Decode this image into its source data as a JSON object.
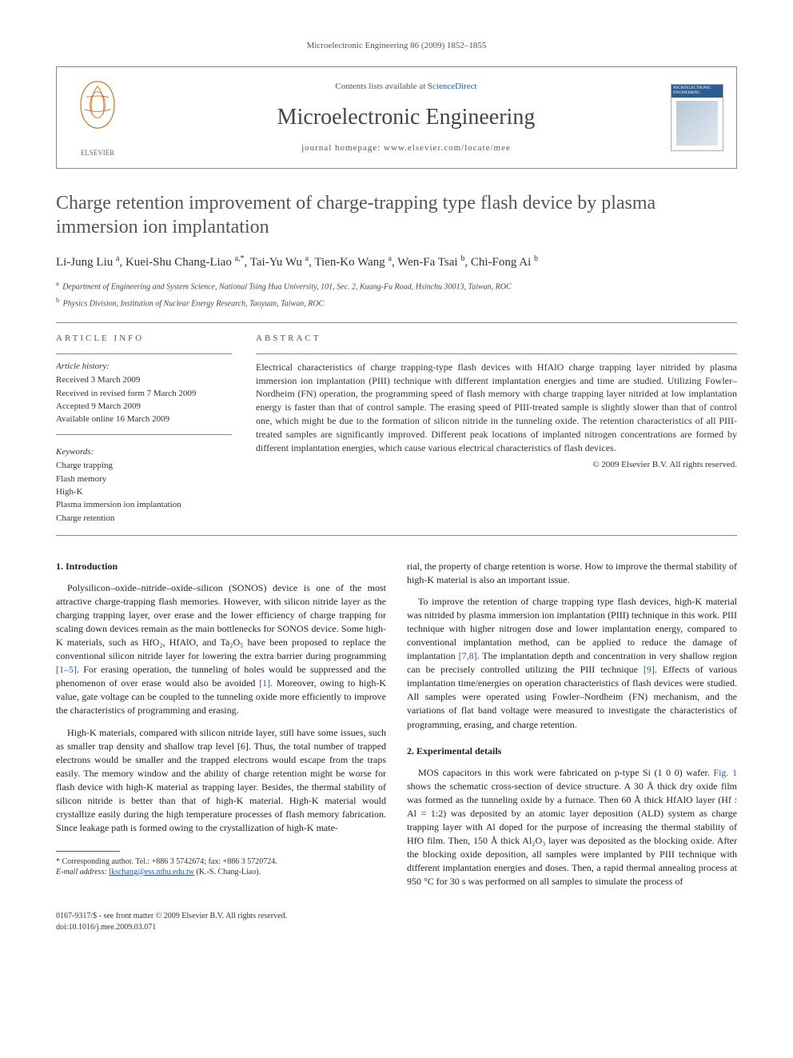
{
  "journal_ref": "Microelectronic Engineering 86 (2009) 1852–1855",
  "header": {
    "publisher": "ELSEVIER",
    "contents_prefix": "Contents lists available at ",
    "contents_link": "ScienceDirect",
    "journal_name": "Microelectronic Engineering",
    "homepage_prefix": "journal homepage: ",
    "homepage_url": "www.elsevier.com/locate/mee",
    "cover_title": "MICROELECTRONIC ENGINEERING"
  },
  "title": "Charge retention improvement of charge-trapping type flash device by plasma immersion ion implantation",
  "authors_html": "Li-Jung Liu <sup>a</sup>, Kuei-Shu Chang-Liao <sup>a,*</sup>, Tai-Yu Wu <sup>a</sup>, Tien-Ko Wang <sup>a</sup>, Wen-Fa Tsai <sup>b</sup>, Chi-Fong Ai <sup>b</sup>",
  "affiliations": [
    {
      "sup": "a",
      "text": "Department of Engineering and System Science, National Tsing Hua University, 101, Sec. 2, Kuang-Fu Road, Hsinchu 30013, Taiwan, ROC"
    },
    {
      "sup": "b",
      "text": "Physics Division, Institution of Nuclear Energy Research, Taoyuan, Taiwan, ROC"
    }
  ],
  "article_info": {
    "heading": "ARTICLE INFO",
    "history_label": "Article history:",
    "history": [
      "Received 3 March 2009",
      "Received in revised form 7 March 2009",
      "Accepted 9 March 2009",
      "Available online 16 March 2009"
    ],
    "keywords_label": "Keywords:",
    "keywords": [
      "Charge trapping",
      "Flash memory",
      "High-K",
      "Plasma immersion ion implantation",
      "Charge retention"
    ]
  },
  "abstract": {
    "heading": "ABSTRACT",
    "text": "Electrical characteristics of charge trapping-type flash devices with HfAlO charge trapping layer nitrided by plasma immersion ion implantation (PIII) technique with different implantation energies and time are studied. Utilizing Fowler–Nordheim (FN) operation, the programming speed of flash memory with charge trapping layer nitrided at low implantation energy is faster than that of control sample. The erasing speed of PIII-treated sample is slightly slower than that of control one, which might be due to the formation of silicon nitride in the tunneling oxide. The retention characteristics of all PIII-treated samples are significantly improved. Different peak locations of implanted nitrogen concentrations are formed by different implantation energies, which cause various electrical characteristics of flash devices.",
    "copyright": "© 2009 Elsevier B.V. All rights reserved."
  },
  "body": {
    "section1_heading": "1. Introduction",
    "section2_heading": "2. Experimental details",
    "col1_p1": "Polysilicon–oxide–nitride–oxide–silicon (SONOS) device is one of the most attractive charge-trapping flash memories. However, with silicon nitride layer as the charging trapping layer, over erase and the lower efficiency of charge trapping for scaling down devices remain as the main bottlenecks for SONOS device. Some high-K materials, such as HfO₂, HfAlO, and Ta₂O₅ have been proposed to replace the conventional silicon nitride layer for lowering the extra barrier during programming [1–5]. For erasing operation, the tunneling of holes would be suppressed and the phenomenon of over erase would also be avoided [1]. Moreover, owing to high-K value, gate voltage can be coupled to the tunneling oxide more efficiently to improve the characteristics of programming and erasing.",
    "col1_p2": "High-K materials, compared with silicon nitride layer, still have some issues, such as smaller trap density and shallow trap level [6]. Thus, the total number of trapped electrons would be smaller and the trapped electrons would escape from the traps easily. The memory window and the ability of charge retention might be worse for flash device with high-K material as trapping layer. Besides, the thermal stability of silicon nitride is better than that of high-K material. High-K material would crystallize easily during the high temperature processes of flash memory fabrication. Since leakage path is formed owing to the crystallization of high-K mate-",
    "col2_p1": "rial, the property of charge retention is worse. How to improve the thermal stability of high-K material is also an important issue.",
    "col2_p2": "To improve the retention of charge trapping type flash devices, high-K material was nitrided by plasma immersion ion implantation (PIII) technique in this work. PIII technique with higher nitrogen dose and lower implantation energy, compared to conventional implantation method, can be applied to reduce the damage of implantation [7,8]. The implantation depth and concentration in very shallow region can be precisely controlled utilizing the PIII technique [9]. Effects of various implantation time/energies on operation characteristics of flash devices were studied. All samples were operated using Fowler–Nordheim (FN) mechanism, and the variations of flat band voltage were measured to investigate the characteristics of programming, erasing, and charge retention.",
    "col2_p3": "MOS capacitors in this work were fabricated on p-type Si (1 0 0) wafer. Fig. 1 shows the schematic cross-section of device structure. A 30 Å thick dry oxide film was formed as the tunneling oxide by a furnace. Then 60 Å thick HfAlO layer (Hf : Al = 1:2) was deposited by an atomic layer deposition (ALD) system as charge trapping layer with Al doped for the purpose of increasing the thermal stability of HfO film. Then, 150 Å thick Al₂O₃ layer was deposited as the blocking oxide. After the blocking oxide deposition, all samples were implanted by PIII technique with different implantation energies and doses. Then, a rapid thermal annealing process at 950 °C for 30 s was performed on all samples to simulate the process of"
  },
  "footnote": {
    "corr": "* Corresponding author. Tel.: +886 3 5742674; fax: +886 3 5720724.",
    "email_label": "E-mail address:",
    "email": "lkschang@ess.nthu.edu.tw",
    "email_suffix": "(K.-S. Chang-Liao)."
  },
  "footer": {
    "line1": "0167-9317/$ - see front matter © 2009 Elsevier B.V. All rights reserved.",
    "line2": "doi:10.1016/j.mee.2009.03.071"
  },
  "colors": {
    "link": "#2259a6",
    "text": "#333333",
    "title": "#555555",
    "rule": "#888888"
  }
}
